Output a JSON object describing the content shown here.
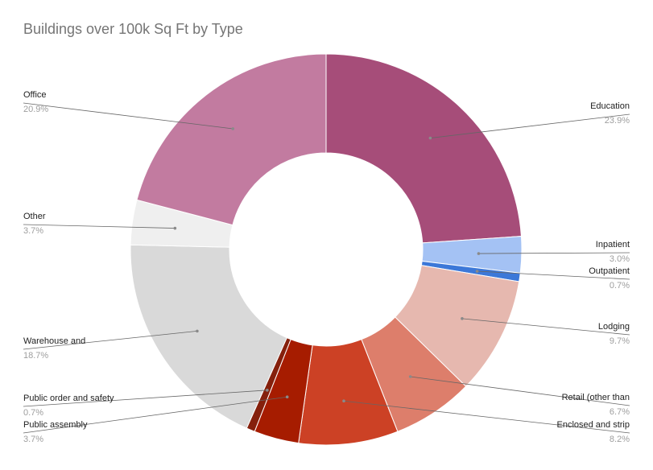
{
  "chart_data": {
    "type": "pie",
    "title": "Buildings over 100k Sq Ft by Type",
    "donut": true,
    "slices": [
      {
        "name": "Education",
        "pct_label": "23.9%",
        "value": 23.9,
        "color": "#a64d79"
      },
      {
        "name": "Inpatient",
        "pct_label": "3.0%",
        "value": 3.0,
        "color": "#a4c2f4"
      },
      {
        "name": "Outpatient",
        "pct_label": "0.7%",
        "value": 0.7,
        "color": "#3c78d8"
      },
      {
        "name": "Lodging",
        "pct_label": "9.7%",
        "value": 9.7,
        "color": "#e6b8af"
      },
      {
        "name": "Retail (other than",
        "pct_label": "6.7%",
        "value": 6.7,
        "color": "#dd7e6b"
      },
      {
        "name": "Enclosed and strip",
        "pct_label": "8.2%",
        "value": 8.2,
        "color": "#cc4125"
      },
      {
        "name": "Public assembly",
        "pct_label": "3.7%",
        "value": 3.7,
        "color": "#a61c00"
      },
      {
        "name": "Public order and safety",
        "pct_label": "0.7%",
        "value": 0.7,
        "color": "#85200c"
      },
      {
        "name": "Warehouse and",
        "pct_label": "18.7%",
        "value": 18.7,
        "color": "#d9d9d9"
      },
      {
        "name": "Other",
        "pct_label": "3.7%",
        "value": 3.7,
        "color": "#efefef"
      },
      {
        "name": "Office",
        "pct_label": "20.9%",
        "value": 20.9,
        "color": "#c27ba0"
      }
    ]
  }
}
